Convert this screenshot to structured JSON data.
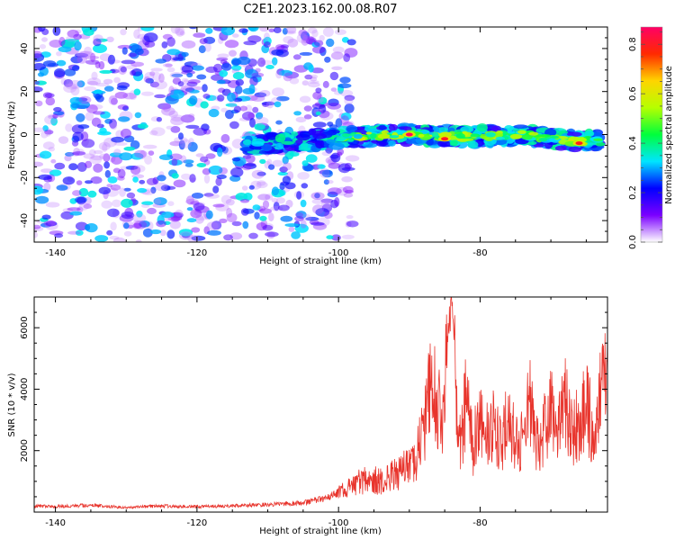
{
  "figure_title": "C2E1.2023.162.00.08.R07",
  "chart_data": [
    {
      "type": "heatmap",
      "xlabel": "Height of straight line (km)",
      "ylabel": "Frequency (Hz)",
      "xlim": [
        -143,
        -62
      ],
      "ylim": [
        -50,
        50
      ],
      "xticks": [
        -140,
        -120,
        -100,
        -80
      ],
      "yticks": [
        -40,
        -20,
        0,
        20,
        40
      ],
      "grid": false,
      "colorbar": {
        "label": "Normalized spectral amplitude",
        "range": [
          0,
          0.87
        ],
        "ticks": [
          0.0,
          0.2,
          0.4,
          0.6,
          0.8
        ],
        "colormap": "rainbow (purple to red)",
        "stops": [
          "#ffffff",
          "#7b00ff",
          "#0000ff",
          "#00e5ff",
          "#00ff3c",
          "#b6ff00",
          "#ffd400",
          "#ff2a00",
          "#ff0066"
        ]
      },
      "ridge": {
        "description": "strong signal band near 0 Hz between about -113 km and -63 km",
        "center_hz": [
          {
            "x": -113,
            "y": -5
          },
          {
            "x": -105,
            "y": -3
          },
          {
            "x": -97,
            "y": -1
          },
          {
            "x": -90,
            "y": 0
          },
          {
            "x": -82,
            "y": -1
          },
          {
            "x": -74,
            "y": 0
          },
          {
            "x": -68,
            "y": -3
          },
          {
            "x": -63,
            "y": -3
          }
        ],
        "peaks": [
          {
            "x": -90,
            "y": 0,
            "value": 0.87
          },
          {
            "x": -85,
            "y": -2,
            "value": 0.8
          },
          {
            "x": -66,
            "y": -4,
            "value": 0.8
          }
        ]
      },
      "noise_region": {
        "x_from": -143,
        "x_to": -100,
        "level": "low (~0.1-0.3) scattered purple speckle"
      }
    },
    {
      "type": "line",
      "xlabel": "Height of straight line (km)",
      "ylabel": "SNR (10 * v/v)",
      "xlim": [
        -143,
        -62
      ],
      "ylim": [
        0,
        7000
      ],
      "xticks": [
        -140,
        -120,
        -100,
        -80
      ],
      "yticks": [
        2000,
        4000,
        6000
      ],
      "grid": false,
      "color": "#e8342c",
      "series": [
        {
          "x": [
            -143,
            -140,
            -135,
            -130,
            -125,
            -120,
            -115,
            -110,
            -105,
            -102,
            -100,
            -98,
            -96,
            -94,
            -92,
            -90,
            -89,
            -88,
            -87,
            -86,
            -85,
            -84.5,
            -84,
            -83.5,
            -83,
            -82.5,
            -82,
            -81,
            -80,
            -79,
            -78,
            -77,
            -76,
            -75,
            -74,
            -73,
            -72,
            -71,
            -70,
            -69,
            -68,
            -67,
            -66,
            -65,
            -64,
            -63,
            -62
          ],
          "y": [
            200,
            180,
            220,
            150,
            200,
            180,
            200,
            250,
            300,
            450,
            600,
            900,
            1100,
            1000,
            1200,
            1500,
            1800,
            2600,
            4200,
            3600,
            3300,
            6500,
            7100,
            5000,
            2000,
            2600,
            3600,
            2000,
            3400,
            2500,
            2800,
            2100,
            3200,
            2200,
            2300,
            3500,
            2200,
            2700,
            3300,
            2500,
            3600,
            2600,
            2900,
            3400,
            2700,
            4000,
            4500
          ]
        }
      ]
    }
  ]
}
